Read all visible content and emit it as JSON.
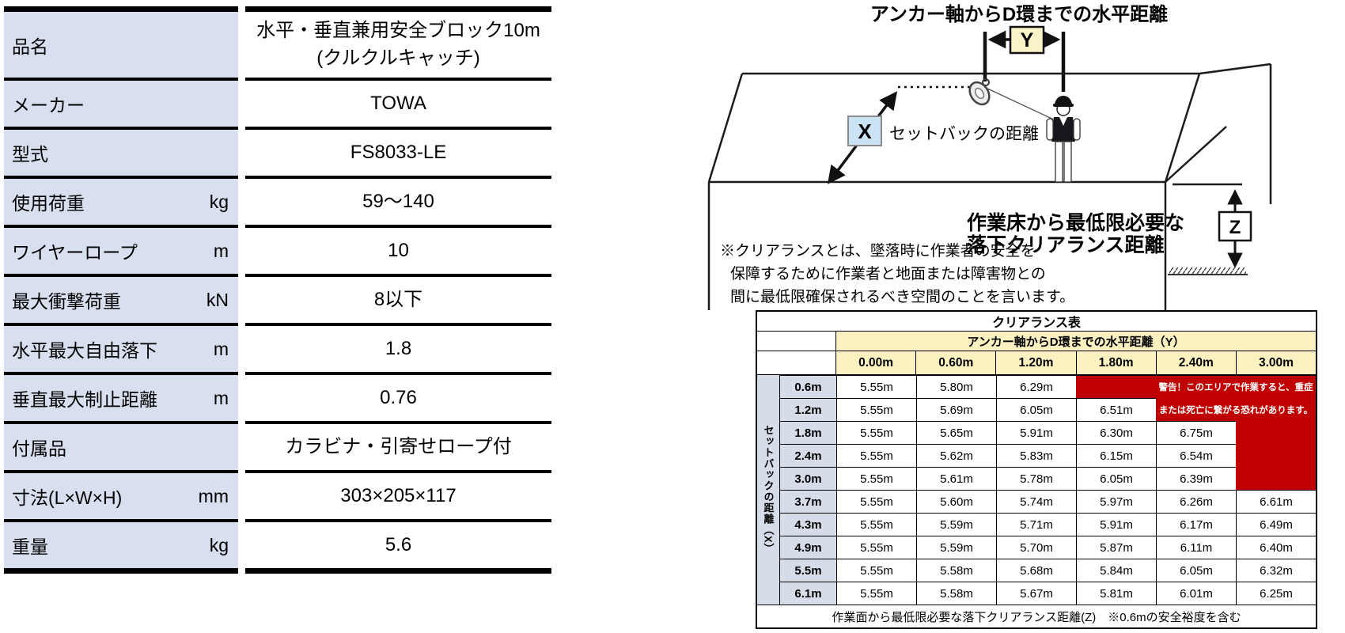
{
  "spec_table": {
    "rows": [
      {
        "label": "品名",
        "unit": "",
        "value": "水平・垂直兼用安全ブロック10m\n(クルクルキャッチ)"
      },
      {
        "label": "メーカー",
        "unit": "",
        "value": "TOWA"
      },
      {
        "label": "型式",
        "unit": "",
        "value": "FS8033-LE"
      },
      {
        "label": "使用荷重",
        "unit": "kg",
        "value": "59〜140"
      },
      {
        "label": "ワイヤーロープ",
        "unit": "m",
        "value": "10"
      },
      {
        "label": "最大衝撃荷重",
        "unit": "kN",
        "value": "8以下"
      },
      {
        "label": "水平最大自由落下",
        "unit": "m",
        "value": "1.8"
      },
      {
        "label": "垂直最大制止距離",
        "unit": "m",
        "value": "0.76"
      },
      {
        "label": "付属品",
        "unit": "",
        "value": "カラビナ・引寄せロープ付"
      },
      {
        "label": "寸法(L×W×H)",
        "unit": "mm",
        "value": "303×205×117"
      },
      {
        "label": "重量",
        "unit": "kg",
        "value": "5.6"
      }
    ]
  },
  "diagram": {
    "title": "アンカー軸からD環までの水平距離",
    "y_label": "Y",
    "x_label": "X",
    "z_label": "Z",
    "setback_label": "セットバックの距離",
    "clearance_label_line1": "作業床から最低限必要な",
    "clearance_label_line2": "落下クリアランス距離",
    "note_line1": "※クリアランスとは、墜落時に作業者の安全を",
    "note_line2": "保障するために作業者と地面または障害物との",
    "note_line3": "間に最低限確保されるべき空間のことを言います。"
  },
  "clearance_table": {
    "title": "クリアランス表",
    "col_group_header": "アンカー軸からD環までの水平距離（Y）",
    "row_group_header": "セットバックの距離（X）",
    "col_headers": [
      "0.00m",
      "0.60m",
      "1.20m",
      "1.80m",
      "2.40m",
      "3.00m"
    ],
    "rows": [
      {
        "label": "0.6m",
        "values": [
          "5.55m",
          "5.80m",
          "6.29m",
          null,
          null,
          null
        ]
      },
      {
        "label": "1.2m",
        "values": [
          "5.55m",
          "5.69m",
          "6.05m",
          "6.51m",
          null,
          null
        ]
      },
      {
        "label": "1.8m",
        "values": [
          "5.55m",
          "5.65m",
          "5.91m",
          "6.30m",
          "6.75m",
          null
        ]
      },
      {
        "label": "2.4m",
        "values": [
          "5.55m",
          "5.62m",
          "5.83m",
          "6.15m",
          "6.54m",
          null
        ]
      },
      {
        "label": "3.0m",
        "values": [
          "5.55m",
          "5.61m",
          "5.78m",
          "6.05m",
          "6.39m",
          null
        ]
      },
      {
        "label": "3.7m",
        "values": [
          "5.55m",
          "5.60m",
          "5.74m",
          "5.97m",
          "6.26m",
          "6.61m"
        ]
      },
      {
        "label": "4.3m",
        "values": [
          "5.55m",
          "5.59m",
          "5.71m",
          "5.91m",
          "6.17m",
          "6.49m"
        ]
      },
      {
        "label": "4.9m",
        "values": [
          "5.55m",
          "5.59m",
          "5.70m",
          "5.87m",
          "6.11m",
          "6.40m"
        ]
      },
      {
        "label": "5.5m",
        "values": [
          "5.55m",
          "5.58m",
          "5.68m",
          "5.84m",
          "6.05m",
          "6.32m"
        ]
      },
      {
        "label": "6.1m",
        "values": [
          "5.55m",
          "5.58m",
          "5.67m",
          "5.81m",
          "6.01m",
          "6.25m"
        ]
      }
    ],
    "warning_line1": "警告！このエリアで作業すると、重症",
    "warning_line2": "または死亡に繋がる恐れがあります。",
    "footer": "作業面から最低限必要な落下クリアランス距離(Z)　※0.6mの安全裕度を含む",
    "colors": {
      "warning_red": "#c00000",
      "header_yellow": "#faf0c0",
      "spec_label_blue": "#d8dfee",
      "row_label_blue": "#d6dce8",
      "x_box_blue": "#cbe4f5",
      "y_box_yellow": "#faf3c8"
    }
  }
}
